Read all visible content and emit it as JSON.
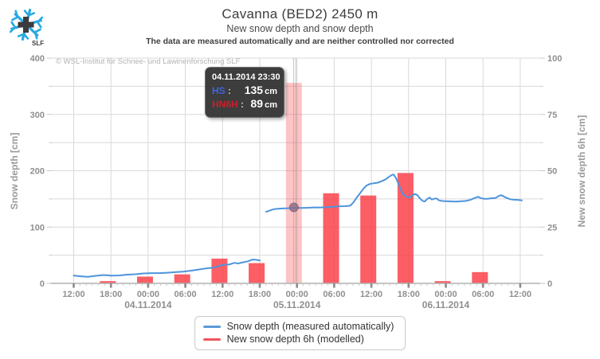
{
  "header": {
    "title": "Cavanna (BED2) 2450 m",
    "subtitle": "New snow depth and snow depth",
    "disclaimer": "The data are measured automatically and are neither controlled nor corrected"
  },
  "logo": {
    "label": "SLF"
  },
  "copyright": "© WSL-Institut für Schnee- und Lawinenforschung SLF",
  "tooltip": {
    "datetime": "04.11.2014 23:30",
    "rows": [
      {
        "label": "HS",
        "value": "135",
        "unit": "cm",
        "color": "#3d64e0"
      },
      {
        "label": "HN6H",
        "value": "89",
        "unit": "cm",
        "color": "#c5212c"
      }
    ]
  },
  "legend": {
    "items": [
      {
        "label": "Snow depth (measured automatically)",
        "color": "#5b9bd8"
      },
      {
        "label": "New snow depth 6h (modelled)",
        "color": "#f0565d"
      }
    ]
  },
  "colors": {
    "line": "#4e94dc",
    "bar": "#fa3a43",
    "grid": "#d9d9d9",
    "axis_line": "#b0b0b0",
    "major_tick": "#8a8a8a",
    "minor_tick": "#c9c9c9",
    "marker": "#8d6f87",
    "crosshair": "#8c8c8c"
  },
  "chart_data": {
    "type": "line+bar",
    "title": "Cavanna (BED2) 2450 m",
    "subtitle": "New snow depth and snow depth",
    "x_axis": {
      "origin": "03.11.2014 12:00",
      "hours_span": 72,
      "tick_labels": [
        "12:00",
        "18:00",
        "00:00",
        "06:00",
        "12:00",
        "18:00",
        "00:00",
        "06:00",
        "12:00",
        "18:00",
        "00:00",
        "06:00",
        "12:00"
      ],
      "date_labels": [
        {
          "h": 12,
          "label": "04.11.2014"
        },
        {
          "h": 36,
          "label": "05.11.2014"
        },
        {
          "h": 60,
          "label": "06.11.2014"
        }
      ]
    },
    "left_axis": {
      "label": "Snow depth [cm]",
      "min": 0,
      "max": 400,
      "ticks": [
        0,
        100,
        200,
        300,
        400
      ],
      "grid_step": 50
    },
    "right_axis": {
      "label": "New snow depth 6h [cm]",
      "min": 0,
      "max": 100,
      "ticks": [
        0,
        25,
        50,
        75,
        100
      ],
      "minor_step": 12.5
    },
    "grid": true,
    "bars": {
      "series": "New snow depth 6h (modelled)",
      "unit": "cm",
      "highlight_h": 35.5,
      "points": [
        {
          "h": 5.5,
          "time": "03.11 17:30",
          "v": 1
        },
        {
          "h": 11.5,
          "time": "03.11 23:30",
          "v": 3
        },
        {
          "h": 17.5,
          "time": "04.11 05:30",
          "v": 4
        },
        {
          "h": 23.5,
          "time": "04.11 11:30",
          "v": 11
        },
        {
          "h": 29.5,
          "time": "04.11 17:30",
          "v": 9
        },
        {
          "h": 35.5,
          "time": "04.11 23:30",
          "v": 89
        },
        {
          "h": 41.5,
          "time": "05.11 05:30",
          "v": 40
        },
        {
          "h": 47.5,
          "time": "05.11 11:30",
          "v": 39
        },
        {
          "h": 53.5,
          "time": "05.11 17:30",
          "v": 49
        },
        {
          "h": 59.5,
          "time": "05.11 23:30",
          "v": 1
        },
        {
          "h": 65.5,
          "time": "06.11 05:30",
          "v": 5
        }
      ]
    },
    "line": {
      "series": "Snow depth (measured automatically)",
      "unit": "cm",
      "segments": [
        [
          [
            0,
            14.0
          ],
          [
            0.96,
            12.7
          ],
          [
            2.25,
            11.6
          ],
          [
            3.53,
            13.4
          ],
          [
            4.82,
            14.8
          ],
          [
            6.1,
            13.7
          ],
          [
            7.39,
            14.1
          ],
          [
            8.67,
            15.5
          ],
          [
            9.96,
            16.2
          ],
          [
            11.24,
            17.6
          ],
          [
            12.53,
            18.3
          ],
          [
            13.81,
            18.3
          ],
          [
            15.1,
            19.0
          ],
          [
            16.38,
            20.0
          ],
          [
            17.67,
            20.9
          ],
          [
            18.95,
            22.6
          ],
          [
            20.24,
            24.7
          ],
          [
            21.52,
            26.8
          ],
          [
            22.55,
            27.8
          ],
          [
            23.45,
            31.0
          ],
          [
            24.22,
            33.2
          ],
          [
            25.12,
            33.6
          ],
          [
            25.89,
            36.4
          ],
          [
            26.53,
            35.3
          ],
          [
            27.3,
            37.4
          ],
          [
            28.07,
            39.2
          ],
          [
            28.84,
            42.2
          ],
          [
            29.36,
            41.8
          ],
          [
            30.0,
            40.9
          ]
        ],
        [
          [
            31.02,
            127.0
          ],
          [
            31.54,
            129.1
          ],
          [
            32.05,
            131.2
          ],
          [
            32.57,
            132.2
          ],
          [
            33.34,
            132.9
          ],
          [
            34.11,
            133.3
          ],
          [
            35.01,
            133.6
          ],
          [
            35.78,
            134.3
          ],
          [
            36.68,
            134.0
          ],
          [
            37.71,
            134.3
          ],
          [
            38.73,
            134.8
          ],
          [
            39.76,
            134.8
          ],
          [
            40.79,
            135.4
          ],
          [
            41.82,
            136.1
          ],
          [
            42.84,
            136.9
          ],
          [
            43.87,
            137.1
          ],
          [
            44.64,
            138.3
          ],
          [
            45.16,
            144.6
          ],
          [
            45.67,
            153.1
          ],
          [
            46.18,
            160.1
          ],
          [
            46.7,
            167.9
          ],
          [
            47.21,
            173.5
          ],
          [
            47.73,
            176.4
          ],
          [
            48.37,
            177.8
          ],
          [
            49.01,
            178.8
          ],
          [
            49.65,
            181.3
          ],
          [
            50.3,
            184.8
          ],
          [
            50.81,
            189.1
          ],
          [
            51.32,
            192.6
          ],
          [
            51.58,
            193.3
          ],
          [
            51.97,
            186.9
          ],
          [
            52.35,
            177.1
          ],
          [
            52.74,
            165.8
          ],
          [
            53.12,
            158.0
          ],
          [
            53.64,
            153.8
          ],
          [
            54.15,
            152.4
          ],
          [
            54.66,
            156.6
          ],
          [
            55.05,
            158.7
          ],
          [
            55.43,
            156.6
          ],
          [
            55.82,
            151.0
          ],
          [
            56.21,
            146.7
          ],
          [
            56.59,
            145.3
          ],
          [
            56.98,
            149.6
          ],
          [
            57.36,
            152.4
          ],
          [
            57.75,
            148.9
          ],
          [
            58.13,
            150.2
          ],
          [
            58.52,
            151.0
          ],
          [
            58.9,
            147.4
          ],
          [
            59.42,
            146.3
          ],
          [
            60.06,
            146.0
          ],
          [
            60.83,
            145.6
          ],
          [
            61.6,
            145.3
          ],
          [
            62.37,
            145.7
          ],
          [
            63.14,
            146.3
          ],
          [
            63.91,
            148.1
          ],
          [
            64.68,
            151.7
          ],
          [
            65.2,
            153.8
          ],
          [
            65.58,
            151.7
          ],
          [
            66.1,
            150.2
          ],
          [
            66.74,
            150.2
          ],
          [
            67.38,
            151.2
          ],
          [
            68.02,
            151.7
          ],
          [
            68.54,
            155.2
          ],
          [
            68.92,
            156.6
          ],
          [
            69.31,
            154.5
          ],
          [
            69.82,
            151.7
          ],
          [
            70.34,
            149.6
          ],
          [
            70.98,
            148.5
          ],
          [
            71.62,
            148.2
          ],
          [
            72.26,
            147.4
          ]
        ]
      ]
    },
    "hover_marker": {
      "h": 35.5,
      "v": 135
    }
  }
}
